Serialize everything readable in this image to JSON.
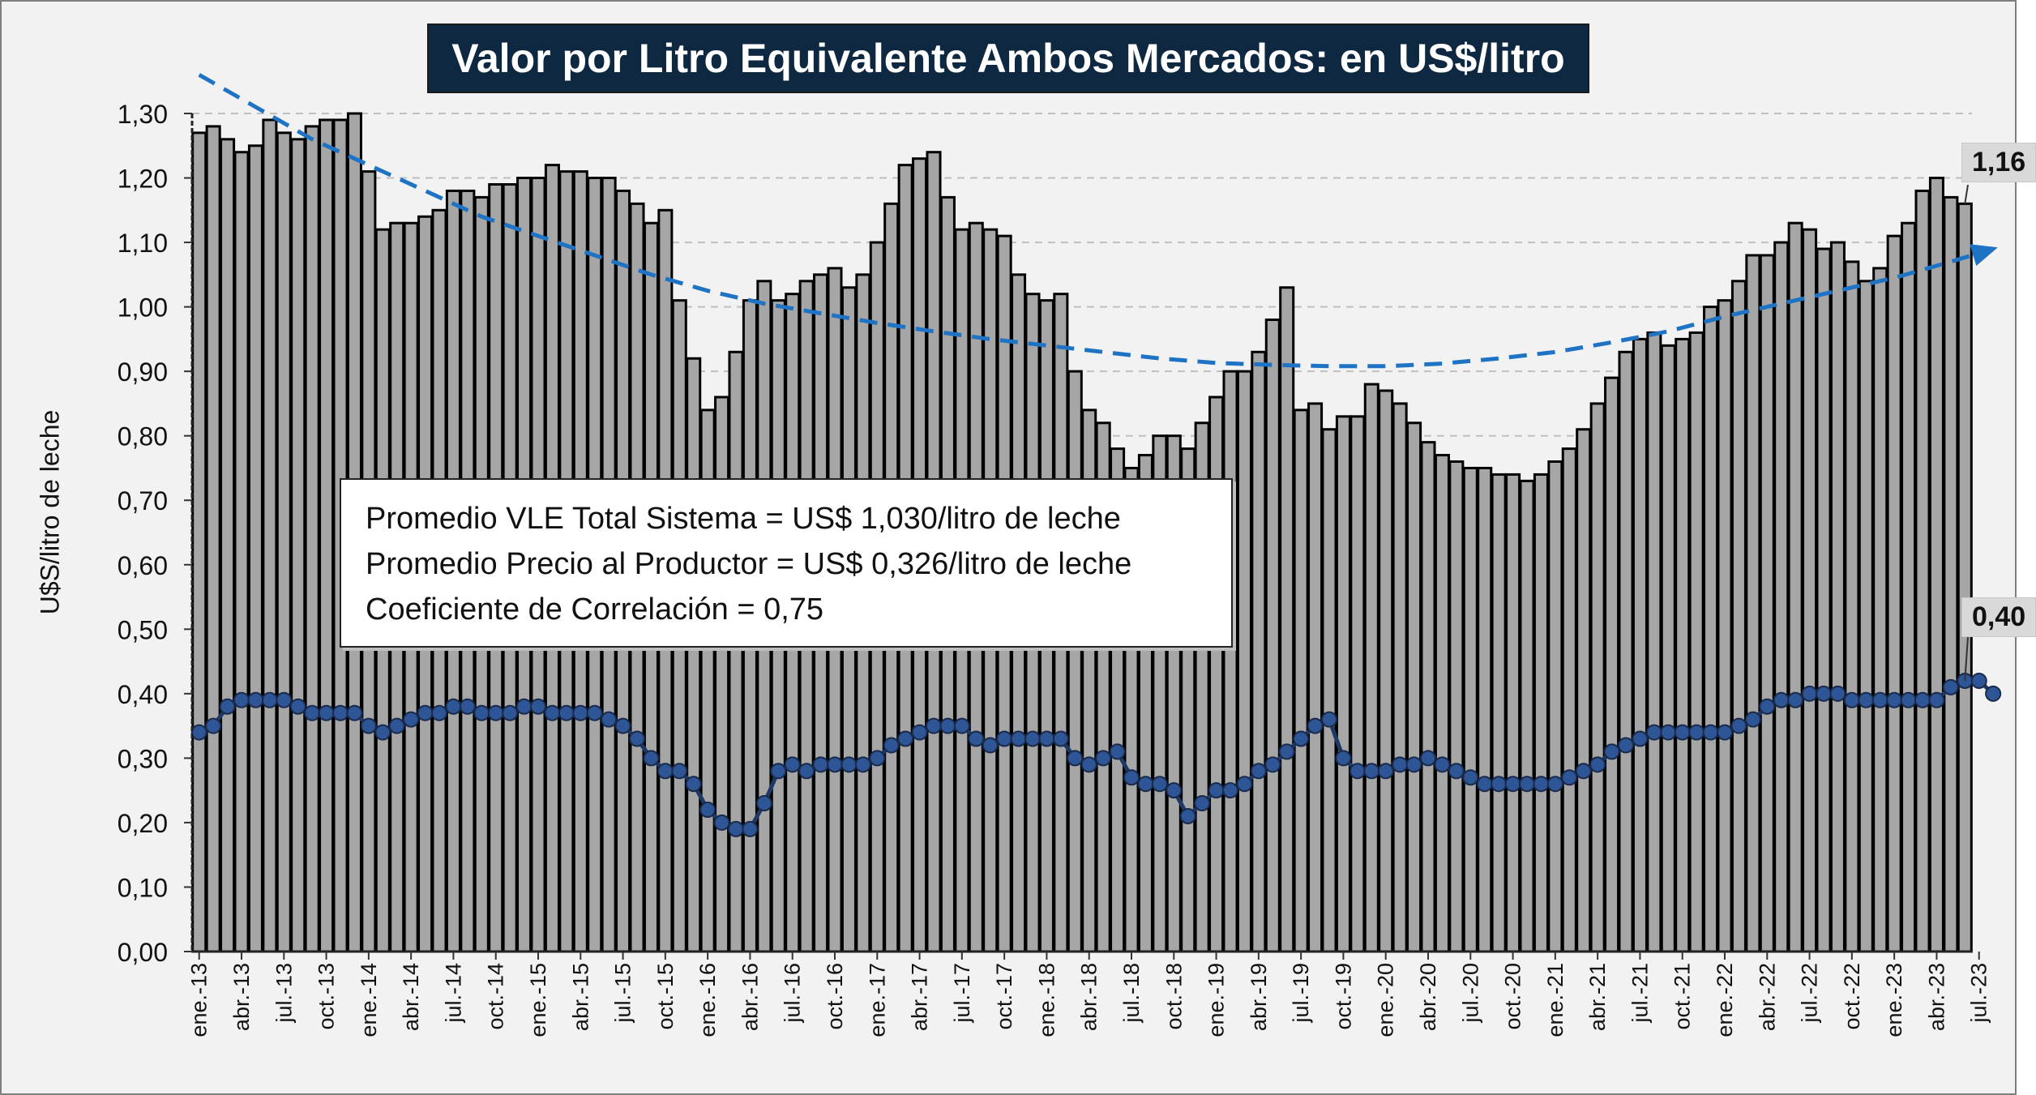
{
  "chart_data": {
    "type": "bar",
    "title": "Valor por Litro Equivalente Ambos Mercados: en US$/litro",
    "ylabel": "U$S/litro de leche",
    "xlabel": "",
    "ylim": [
      0,
      1.3
    ],
    "yticks": [
      "0,00",
      "0,10",
      "0,20",
      "0,30",
      "0,40",
      "0,50",
      "0,60",
      "0,70",
      "0,80",
      "0,90",
      "1,00",
      "1,10",
      "1,20",
      "1,30"
    ],
    "grid": "horizontal dashed",
    "tick_labels": [
      "ene.-13",
      "abr.-13",
      "jul.-13",
      "oct.-13",
      "ene.-14",
      "abr.-14",
      "jul.-14",
      "oct.-14",
      "ene.-15",
      "abr.-15",
      "jul.-15",
      "oct.-15",
      "ene.-16",
      "abr.-16",
      "jul.-16",
      "oct.-16",
      "ene.-17",
      "abr.-17",
      "jul.-17",
      "oct.-17",
      "ene.-18",
      "abr.-18",
      "jul.-18",
      "oct.-18",
      "ene.-19",
      "abr.-19",
      "jul.-19",
      "oct.-19",
      "ene.-20",
      "abr.-20",
      "jul.-20",
      "oct.-20",
      "ene.-21",
      "abr.-21",
      "jul.-21",
      "oct.-21",
      "ene.-22",
      "abr.-22",
      "jul.-22",
      "oct.-22",
      "ene.-23",
      "abr.-23",
      "jul.-23"
    ],
    "series": [
      {
        "kind": "bar",
        "values": [
          1.27,
          1.28,
          1.26,
          1.24,
          1.25,
          1.29,
          1.27,
          1.26,
          1.28,
          1.29,
          1.29,
          1.3,
          1.21,
          1.12,
          1.13,
          1.13,
          1.14,
          1.15,
          1.18,
          1.18,
          1.17,
          1.19,
          1.19,
          1.2,
          1.2,
          1.22,
          1.21,
          1.21,
          1.2,
          1.2,
          1.18,
          1.16,
          1.13,
          1.15,
          1.01,
          0.92,
          0.84,
          0.86,
          0.93,
          1.01,
          1.04,
          1.01,
          1.02,
          1.04,
          1.05,
          1.06,
          1.03,
          1.05,
          1.1,
          1.16,
          1.22,
          1.23,
          1.24,
          1.17,
          1.12,
          1.13,
          1.12,
          1.11,
          1.05,
          1.02,
          1.01,
          1.02,
          0.9,
          0.84,
          0.82,
          0.78,
          0.75,
          0.77,
          0.8,
          0.8,
          0.78,
          0.82,
          0.86,
          0.9,
          0.9,
          0.93,
          0.98,
          1.03,
          0.84,
          0.85,
          0.81,
          0.83,
          0.83,
          0.88,
          0.87,
          0.85,
          0.82,
          0.79,
          0.77,
          0.76,
          0.75,
          0.75,
          0.74,
          0.74,
          0.73,
          0.74,
          0.76,
          0.78,
          0.81,
          0.85,
          0.89,
          0.93,
          0.95,
          0.96,
          0.94,
          0.95,
          0.96,
          1.0,
          1.01,
          1.04,
          1.08,
          1.08,
          1.1,
          1.13,
          1.12,
          1.09,
          1.1,
          1.07,
          1.04,
          1.06,
          1.11,
          1.13,
          1.18,
          1.2,
          1.17,
          1.16
        ]
      },
      {
        "kind": "line-markers",
        "values": [
          0.34,
          0.35,
          0.38,
          0.39,
          0.39,
          0.39,
          0.39,
          0.38,
          0.37,
          0.37,
          0.37,
          0.37,
          0.35,
          0.34,
          0.35,
          0.36,
          0.37,
          0.37,
          0.38,
          0.38,
          0.37,
          0.37,
          0.37,
          0.38,
          0.38,
          0.37,
          0.37,
          0.37,
          0.37,
          0.36,
          0.35,
          0.33,
          0.3,
          0.28,
          0.28,
          0.26,
          0.22,
          0.2,
          0.19,
          0.19,
          0.23,
          0.28,
          0.29,
          0.28,
          0.29,
          0.29,
          0.29,
          0.29,
          0.3,
          0.32,
          0.33,
          0.34,
          0.35,
          0.35,
          0.35,
          0.33,
          0.32,
          0.33,
          0.33,
          0.33,
          0.33,
          0.33,
          0.3,
          0.29,
          0.3,
          0.31,
          0.27,
          0.26,
          0.26,
          0.25,
          0.21,
          0.23,
          0.25,
          0.25,
          0.26,
          0.28,
          0.29,
          0.31,
          0.33,
          0.35,
          0.36,
          0.3,
          0.28,
          0.28,
          0.28,
          0.29,
          0.29,
          0.3,
          0.29,
          0.28,
          0.27,
          0.26,
          0.26,
          0.26,
          0.26,
          0.26,
          0.26,
          0.27,
          0.28,
          0.29,
          0.31,
          0.32,
          0.33,
          0.34,
          0.34,
          0.34,
          0.34,
          0.34,
          0.34,
          0.35,
          0.36,
          0.38,
          0.39,
          0.39,
          0.4,
          0.4,
          0.4,
          0.39,
          0.39,
          0.39,
          0.39,
          0.39,
          0.39,
          0.39,
          0.41,
          0.42,
          0.42,
          0.4
        ]
      },
      {
        "kind": "trendline",
        "style": "dashed",
        "x": [
          0,
          4,
          8,
          12,
          16,
          20,
          24,
          28,
          32,
          36,
          40,
          44,
          48,
          52,
          56,
          60,
          64,
          68,
          72,
          76,
          80,
          84,
          88,
          92,
          96,
          100,
          104,
          108,
          112,
          116,
          120,
          124,
          127
        ],
        "values": [
          1.36,
          1.31,
          1.26,
          1.22,
          1.18,
          1.14,
          1.11,
          1.08,
          1.05,
          1.025,
          1.005,
          0.99,
          0.975,
          0.962,
          0.95,
          0.94,
          0.93,
          0.92,
          0.913,
          0.91,
          0.908,
          0.908,
          0.912,
          0.92,
          0.93,
          0.945,
          0.962,
          0.985,
          1.005,
          1.025,
          1.045,
          1.07,
          1.09
        ]
      }
    ],
    "colors": {
      "bar_fill": "#a6a6a6",
      "bar_edge": "#000000",
      "price_line": "#1f3864",
      "marker_fill": "#2e5596",
      "trend": "#1f73c4",
      "title_bg": "#0e2841"
    },
    "annotations": {
      "last_bar": "1,16",
      "last_price": "0,40"
    }
  },
  "stats": {
    "line1": "Promedio VLE Total Sistema = US$ 1,030/litro de leche",
    "line2": "Promedio Precio al Productor = US$ 0,326/litro de leche",
    "line3": "Coeficiente de Correlación = 0,75"
  }
}
